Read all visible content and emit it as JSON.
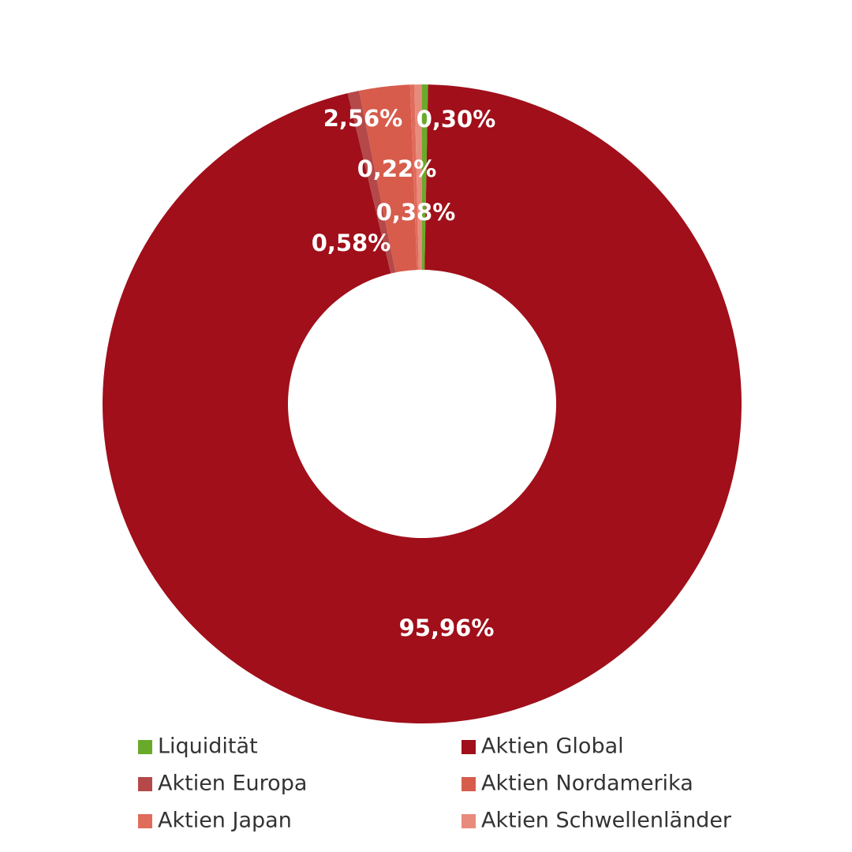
{
  "chart_data": {
    "type": "donut",
    "categories": [
      "Liquidität",
      "Aktien Global",
      "Aktien Europa",
      "Aktien Nordamerika",
      "Aktien Japan",
      "Aktien Schwellenländer"
    ],
    "values": [
      0.3,
      95.96,
      0.58,
      2.56,
      0.22,
      0.38
    ],
    "value_labels": [
      "0,30%",
      "95,96%",
      "0,58%",
      "2,56%",
      "0,22%",
      "0,38%"
    ],
    "colors": [
      "#6aaa2a",
      "#a00f1a",
      "#b5494a",
      "#d75c4c",
      "#e06c5c",
      "#e98b7c"
    ]
  }
}
